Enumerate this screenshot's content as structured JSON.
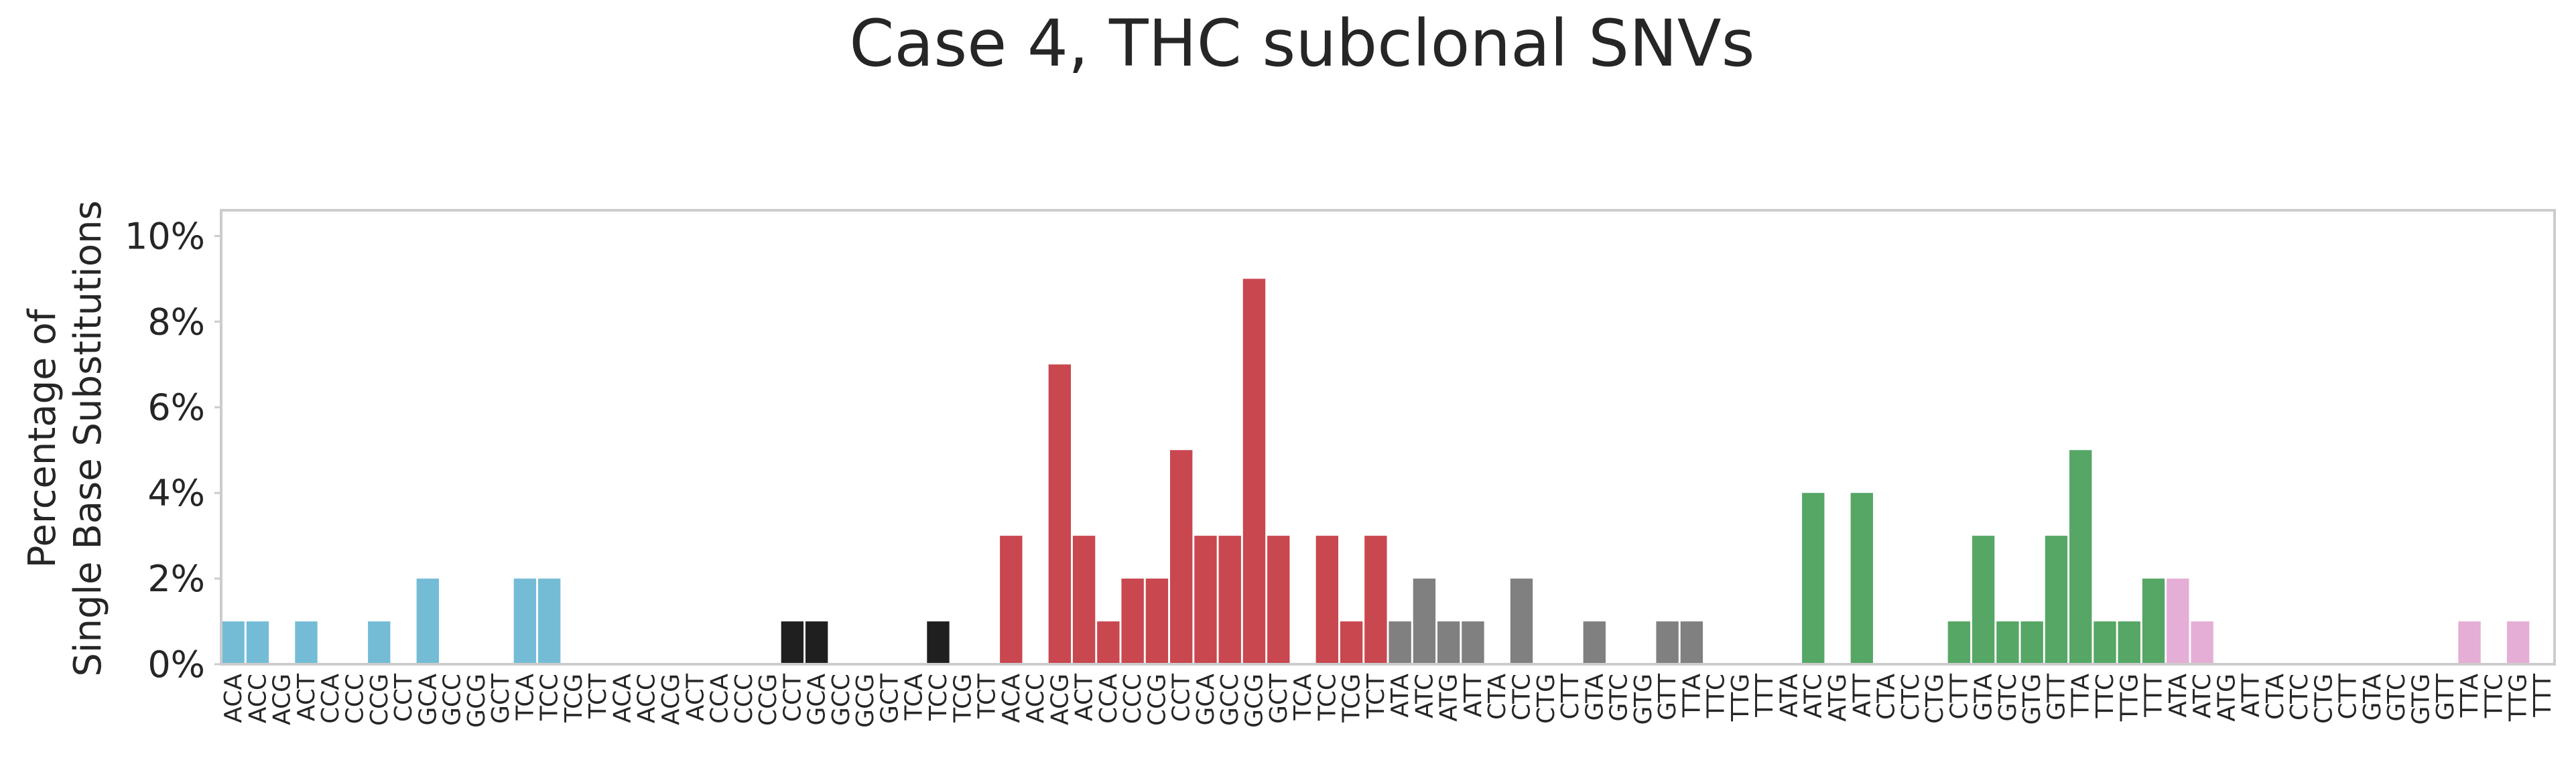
{
  "chart_data": {
    "type": "bar",
    "title": "Case 4, THC subclonal SNVs",
    "ylabel_lines": [
      "Percentage of",
      "Single Base Substitutions"
    ],
    "xlabel": "",
    "ylim": [
      0,
      10.6
    ],
    "yticks": [
      0,
      2,
      4,
      6,
      8,
      10
    ],
    "ytick_labels": [
      "0%",
      "2%",
      "4%",
      "6%",
      "8%",
      "10%"
    ],
    "grid": false,
    "colors": [
      "#74bcd6",
      "#1f1f1f",
      "#c9474f",
      "#808080",
      "#56a765",
      "#e5aed6"
    ],
    "categories": [
      "ACA",
      "ACC",
      "ACG",
      "ACT",
      "CCA",
      "CCC",
      "CCG",
      "CCT",
      "GCA",
      "GCC",
      "GCG",
      "GCT",
      "TCA",
      "TCC",
      "TCG",
      "TCT",
      "ACA",
      "ACC",
      "ACG",
      "ACT",
      "CCA",
      "CCC",
      "CCG",
      "CCT",
      "GCA",
      "GCC",
      "GCG",
      "GCT",
      "TCA",
      "TCC",
      "TCG",
      "TCT",
      "ACA",
      "ACC",
      "ACG",
      "ACT",
      "CCA",
      "CCC",
      "CCG",
      "CCT",
      "GCA",
      "GCC",
      "GCG",
      "GCT",
      "TCA",
      "TCC",
      "TCG",
      "TCT",
      "ATA",
      "ATC",
      "ATG",
      "ATT",
      "CTA",
      "CTC",
      "CTG",
      "CTT",
      "GTA",
      "GTC",
      "GTG",
      "GTT",
      "TTA",
      "TTC",
      "TTG",
      "TTT",
      "ATA",
      "ATC",
      "ATG",
      "ATT",
      "CTA",
      "CTC",
      "CTG",
      "CTT",
      "GTA",
      "GTC",
      "GTG",
      "GTT",
      "TTA",
      "TTC",
      "TTG",
      "TTT",
      "ATA",
      "ATC",
      "ATG",
      "ATT",
      "CTA",
      "CTC",
      "CTG",
      "CTT",
      "GTA",
      "GTC",
      "GTG",
      "GTT",
      "TTA",
      "TTC",
      "TTG",
      "TTT"
    ],
    "values": [
      1,
      1,
      0,
      1,
      0,
      0,
      1,
      0,
      2,
      0,
      0,
      0,
      2,
      2,
      0,
      0,
      0,
      0,
      0,
      0,
      0,
      0,
      0,
      1,
      1,
      0,
      0,
      0,
      0,
      1,
      0,
      0,
      3,
      0,
      7,
      3,
      1,
      2,
      2,
      5,
      3,
      3,
      9,
      3,
      0,
      3,
      1,
      3,
      1,
      2,
      1,
      1,
      0,
      2,
      0,
      0,
      1,
      0,
      0,
      1,
      1,
      0,
      0,
      0,
      0,
      4,
      0,
      4,
      0,
      0,
      0,
      1,
      3,
      1,
      1,
      3,
      5,
      1,
      1,
      2,
      2,
      1,
      0,
      0,
      0,
      0,
      0,
      0,
      0,
      0,
      0,
      0,
      1,
      0,
      1,
      0
    ],
    "color_index": [
      0,
      0,
      0,
      0,
      0,
      0,
      0,
      0,
      0,
      0,
      0,
      0,
      0,
      0,
      0,
      0,
      1,
      1,
      1,
      1,
      1,
      1,
      1,
      1,
      1,
      1,
      1,
      1,
      1,
      1,
      1,
      1,
      2,
      2,
      2,
      2,
      2,
      2,
      2,
      2,
      2,
      2,
      2,
      2,
      2,
      2,
      2,
      2,
      3,
      3,
      3,
      3,
      3,
      3,
      3,
      3,
      3,
      3,
      3,
      3,
      3,
      3,
      3,
      3,
      4,
      4,
      4,
      4,
      4,
      4,
      4,
      4,
      4,
      4,
      4,
      4,
      4,
      4,
      4,
      4,
      5,
      5,
      5,
      5,
      5,
      5,
      5,
      5,
      5,
      5,
      5,
      5,
      5,
      5,
      5,
      5
    ]
  }
}
